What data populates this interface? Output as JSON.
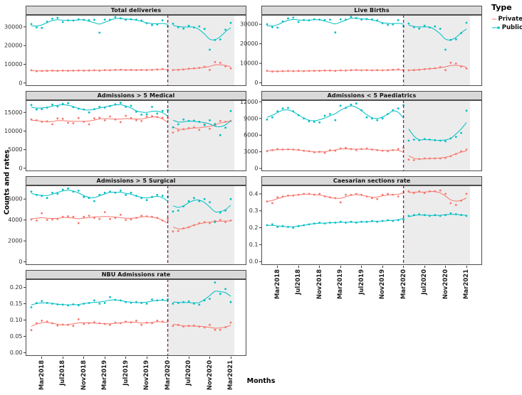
{
  "figure": {
    "y_axis_title": "Counts and rates",
    "x_axis_title": "Months",
    "legend": {
      "title": "Type",
      "items": [
        {
          "label": "Private",
          "color": "#F8766D"
        },
        {
          "label": "Public",
          "color": "#00BFC4"
        }
      ]
    },
    "x_tick_labels": [
      "Mar2018",
      "Jul2018",
      "Nov2018",
      "Mar2019",
      "Jul2019",
      "Nov2019",
      "Mar2020",
      "Jul2020",
      "Nov2020",
      "Mar2021"
    ],
    "x_tick_month_indices": [
      2,
      6,
      10,
      14,
      18,
      22,
      26,
      30,
      34,
      38
    ],
    "intervention": {
      "at": "Mar2020",
      "line_style": "dashed",
      "line_color": "#6E2A58",
      "shade_color": "#7f7f7f",
      "shade_opacity": 0.15
    },
    "panel_background": "#ffffff",
    "strip_background": "#d9d9d9"
  },
  "chart_data": [
    {
      "type": "scatter",
      "title": "Total deliveries",
      "column": 0,
      "row": 0,
      "ylim": [
        -1600,
        36400
      ],
      "yticks": [
        0,
        10000,
        20000,
        30000
      ],
      "ytick_labels": [
        "0",
        "10000",
        "20000",
        "30000"
      ],
      "series": [
        {
          "name": "Private",
          "color": "#F8766D",
          "values": [
            6800,
            6300,
            6400,
            6500,
            6600,
            6500,
            6600,
            6500,
            6600,
            6700,
            6600,
            6700,
            6800,
            6600,
            6900,
            6800,
            7000,
            7100,
            6900,
            7000,
            6900,
            7000,
            6900,
            7000,
            7200,
            7500,
            7000,
            6900,
            7000,
            7200,
            7600,
            7800,
            8100,
            8700,
            7000,
            11200,
            10800,
            8900,
            7800
          ]
        },
        {
          "name": "Public",
          "color": "#00BFC4",
          "values": [
            31500,
            29700,
            29500,
            32800,
            34400,
            34800,
            32600,
            33500,
            33400,
            34000,
            33800,
            33600,
            33800,
            26900,
            33900,
            33800,
            35300,
            34600,
            33800,
            34100,
            33900,
            33400,
            31900,
            31000,
            31300,
            33500,
            30300,
            31700,
            29800,
            29100,
            30600,
            29700,
            30300,
            28900,
            17800,
            23000,
            23300,
            28500,
            32200
          ]
        }
      ]
    },
    {
      "type": "scatter",
      "title": "Live Births",
      "column": 1,
      "row": 0,
      "ylim": [
        -1600,
        34800
      ],
      "yticks": [
        0,
        10000,
        20000,
        30000
      ],
      "ytick_labels": [
        "0",
        "10000",
        "20000",
        "30000"
      ],
      "series": [
        {
          "name": "Private",
          "color": "#F8766D",
          "values": [
            6200,
            5800,
            5900,
            6000,
            6100,
            6000,
            6100,
            6000,
            6100,
            6200,
            6200,
            6300,
            6300,
            6100,
            6400,
            6300,
            6500,
            6600,
            6400,
            6500,
            6400,
            6500,
            6400,
            6500,
            6700,
            6900,
            6500,
            6400,
            6500,
            6700,
            7000,
            7200,
            7500,
            8100,
            6500,
            10300,
            9900,
            8300,
            7300
          ]
        },
        {
          "name": "Public",
          "color": "#00BFC4",
          "values": [
            30000,
            28500,
            28300,
            31500,
            33000,
            33400,
            31200,
            32200,
            32000,
            32600,
            32400,
            32200,
            32400,
            25800,
            32500,
            32400,
            33800,
            33200,
            32400,
            32700,
            32500,
            32000,
            30500,
            29700,
            30000,
            32100,
            29000,
            30400,
            28500,
            27800,
            29300,
            28400,
            28900,
            27700,
            17000,
            22000,
            22300,
            25500,
            30800
          ]
        }
      ]
    },
    {
      "type": "scatter",
      "title": "Admissions > 5 Medical",
      "column": 0,
      "row": 1,
      "ylim": [
        -800,
        18300
      ],
      "yticks": [
        0,
        5000,
        10000,
        15000
      ],
      "ytick_labels": [
        "0",
        "5000",
        "10000",
        "15000"
      ],
      "series": [
        {
          "name": "Private",
          "color": "#F8766D",
          "values": [
            13100,
            12900,
            12500,
            12600,
            11800,
            13400,
            13300,
            12200,
            12100,
            13500,
            12500,
            11800,
            13400,
            13600,
            12900,
            13900,
            13100,
            12400,
            14100,
            13500,
            12900,
            12700,
            13900,
            14000,
            13800,
            13600,
            13500,
            9600,
            10100,
            10500,
            10800,
            11000,
            10300,
            11800,
            10600,
            11500,
            12700,
            12500,
            12700
          ]
        },
        {
          "name": "Public",
          "color": "#00BFC4",
          "values": [
            17000,
            15800,
            15900,
            16300,
            17100,
            16600,
            17300,
            17500,
            16400,
            16000,
            15800,
            15000,
            15900,
            16500,
            16300,
            16700,
            17200,
            17600,
            16500,
            16800,
            15200,
            14400,
            14500,
            16500,
            14700,
            15400,
            15600,
            11000,
            11800,
            13100,
            12700,
            12800,
            12500,
            11600,
            12900,
            11900,
            8900,
            10900,
            15400
          ]
        }
      ]
    },
    {
      "type": "scatter",
      "title": "Admissions < 5 Paediatrics",
      "column": 1,
      "row": 1,
      "ylim": [
        -500,
        12300
      ],
      "yticks": [
        0,
        3000,
        6000,
        9000,
        12000
      ],
      "ytick_labels": [
        "0",
        "3000",
        "6000",
        "9000",
        "12000"
      ],
      "series": [
        {
          "name": "Private",
          "color": "#F8766D",
          "values": [
            3100,
            3300,
            3500,
            3400,
            3450,
            3400,
            3350,
            3200,
            3100,
            2900,
            3000,
            2800,
            3300,
            3200,
            3600,
            3700,
            3500,
            3300,
            3500,
            3600,
            3400,
            3300,
            3200,
            3100,
            3300,
            3500,
            3700,
            1600,
            1500,
            1700,
            1800,
            1800,
            1800,
            1800,
            1900,
            2200,
            2600,
            3100,
            3400
          ]
        },
        {
          "name": "Public",
          "color": "#00BFC4",
          "values": [
            8800,
            9200,
            10300,
            10800,
            10900,
            10300,
            9600,
            9000,
            8500,
            8400,
            8300,
            9500,
            9800,
            8700,
            11300,
            10900,
            11500,
            11700,
            10500,
            9200,
            9000,
            8700,
            9000,
            9800,
            10500,
            10800,
            11400,
            5000,
            5200,
            5100,
            5300,
            5200,
            5100,
            5000,
            4900,
            5400,
            5700,
            6400,
            10400
          ]
        }
      ]
    },
    {
      "type": "scatter",
      "title": "Admissions > 5 Surgical",
      "column": 0,
      "row": 2,
      "ylim": [
        -300,
        7300
      ],
      "yticks": [
        0,
        2000,
        4000,
        6000
      ],
      "ytick_labels": [
        "0",
        "2000",
        "4000",
        "6000"
      ],
      "series": [
        {
          "name": "Private",
          "color": "#F8766D",
          "values": [
            4050,
            3950,
            4650,
            4000,
            4050,
            4100,
            4300,
            4350,
            4300,
            3700,
            4300,
            4400,
            4200,
            4100,
            4750,
            4100,
            4200,
            4500,
            4000,
            4050,
            4200,
            4400,
            4350,
            4300,
            4200,
            3950,
            4100,
            2900,
            2950,
            3200,
            3300,
            3500,
            3700,
            3800,
            3700,
            3900,
            4000,
            3800,
            3950
          ]
        },
        {
          "name": "Public",
          "color": "#00BFC4",
          "values": [
            6700,
            6400,
            6300,
            6100,
            6600,
            6500,
            6900,
            7000,
            6700,
            6800,
            6200,
            6100,
            5800,
            6400,
            6600,
            6700,
            6600,
            6800,
            6400,
            6600,
            6300,
            6100,
            5900,
            6200,
            6400,
            6300,
            6200,
            4800,
            4900,
            5300,
            5800,
            6100,
            5800,
            6000,
            5700,
            3800,
            4700,
            4900,
            6000
          ]
        }
      ]
    },
    {
      "type": "scatter",
      "title": "Caesarian sections rate",
      "column": 1,
      "row": 2,
      "ylim": [
        -0.02,
        0.45
      ],
      "yticks": [
        0,
        0.1,
        0.2,
        0.3,
        0.4
      ],
      "ytick_labels": [
        "0.0",
        "0.1",
        "0.2",
        "0.3",
        "0.4"
      ],
      "series": [
        {
          "name": "Private",
          "color": "#F8766D",
          "values": [
            0.355,
            0.345,
            0.38,
            0.385,
            0.39,
            0.39,
            0.395,
            0.4,
            0.4,
            0.395,
            0.4,
            0.385,
            0.38,
            0.375,
            0.35,
            0.395,
            0.395,
            0.4,
            0.395,
            0.385,
            0.375,
            0.37,
            0.395,
            0.4,
            0.395,
            0.385,
            0.41,
            0.415,
            0.405,
            0.415,
            0.405,
            0.415,
            0.415,
            0.42,
            0.4,
            0.345,
            0.335,
            0.36,
            0.4
          ]
        },
        {
          "name": "Public",
          "color": "#00BFC4",
          "values": [
            0.215,
            0.22,
            0.205,
            0.21,
            0.205,
            0.2,
            0.21,
            0.215,
            0.22,
            0.225,
            0.23,
            0.225,
            0.23,
            0.23,
            0.235,
            0.23,
            0.235,
            0.23,
            0.235,
            0.235,
            0.24,
            0.235,
            0.24,
            0.245,
            0.24,
            0.245,
            0.25,
            0.27,
            0.275,
            0.28,
            0.275,
            0.27,
            0.275,
            0.27,
            0.275,
            0.285,
            0.28,
            0.275,
            0.27
          ]
        }
      ]
    },
    {
      "type": "scatter",
      "title": "NBU Admissions rate",
      "column": 0,
      "row": 3,
      "ylim": [
        -0.01,
        0.225
      ],
      "yticks": [
        0,
        0.05,
        0.1,
        0.15,
        0.2
      ],
      "ytick_labels": [
        "0.00",
        "0.05",
        "0.10",
        "0.15",
        "0.20"
      ],
      "series": [
        {
          "name": "Private",
          "color": "#F8766D",
          "values": [
            0.069,
            0.09,
            0.098,
            0.095,
            0.09,
            0.083,
            0.086,
            0.085,
            0.082,
            0.102,
            0.088,
            0.09,
            0.093,
            0.09,
            0.088,
            0.085,
            0.092,
            0.09,
            0.095,
            0.093,
            0.098,
            0.085,
            0.092,
            0.09,
            0.098,
            0.095,
            0.097,
            0.082,
            0.085,
            0.08,
            0.082,
            0.083,
            0.08,
            0.077,
            0.085,
            0.07,
            0.07,
            0.078,
            0.092
          ]
        },
        {
          "name": "Public",
          "color": "#00BFC4",
          "values": [
            0.139,
            0.152,
            0.158,
            0.152,
            0.15,
            0.148,
            0.147,
            0.145,
            0.148,
            0.145,
            0.15,
            0.152,
            0.16,
            0.15,
            0.152,
            0.17,
            0.162,
            0.16,
            0.155,
            0.153,
            0.155,
            0.152,
            0.15,
            0.163,
            0.16,
            0.162,
            0.163,
            0.15,
            0.152,
            0.155,
            0.157,
            0.15,
            0.147,
            0.16,
            0.165,
            0.215,
            0.18,
            0.195,
            0.155
          ]
        }
      ]
    }
  ]
}
